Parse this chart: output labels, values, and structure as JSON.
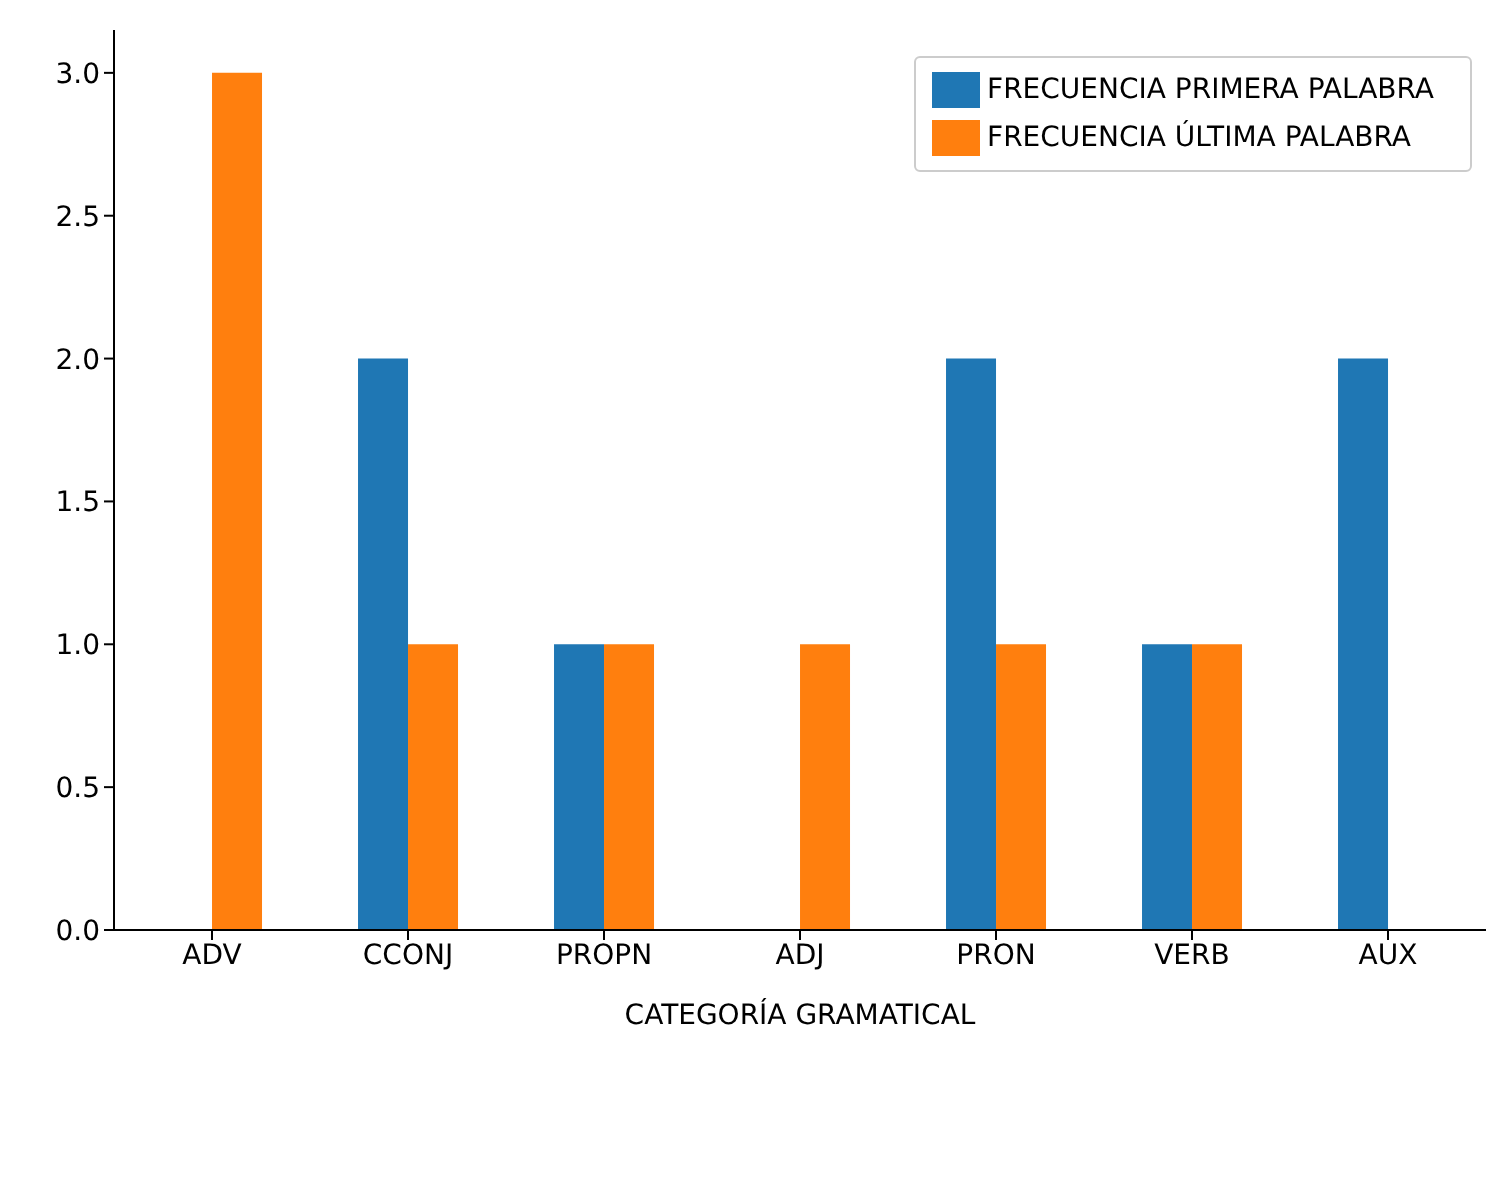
{
  "chart_data": {
    "type": "bar",
    "xlabel": "CATEGORÍA GRAMATICAL",
    "categories": [
      "ADV",
      "CCONJ",
      "PROPN",
      "ADJ",
      "PRON",
      "VERB",
      "AUX"
    ],
    "series": [
      {
        "name": "FRECUENCIA PRIMERA PALABRA",
        "color": "#1f77b4",
        "values": [
          0,
          2,
          1,
          0,
          2,
          1,
          2
        ]
      },
      {
        "name": "FRECUENCIA ÚLTIMA PALABRA",
        "color": "#ff7f0e",
        "values": [
          3,
          1,
          1,
          1,
          1,
          1,
          0
        ]
      }
    ],
    "ylim": [
      0,
      3.15
    ],
    "yticks": [
      {
        "value": 0,
        "label": "0.0"
      },
      {
        "value": 0.5,
        "label": "0.5"
      },
      {
        "value": 1,
        "label": "1.0"
      },
      {
        "value": 1.5,
        "label": "1.5"
      },
      {
        "value": 2,
        "label": "2.0"
      },
      {
        "value": 2.5,
        "label": "2.5"
      },
      {
        "value": 3,
        "label": "3.0"
      }
    ],
    "grid": false,
    "legend": "top right"
  }
}
